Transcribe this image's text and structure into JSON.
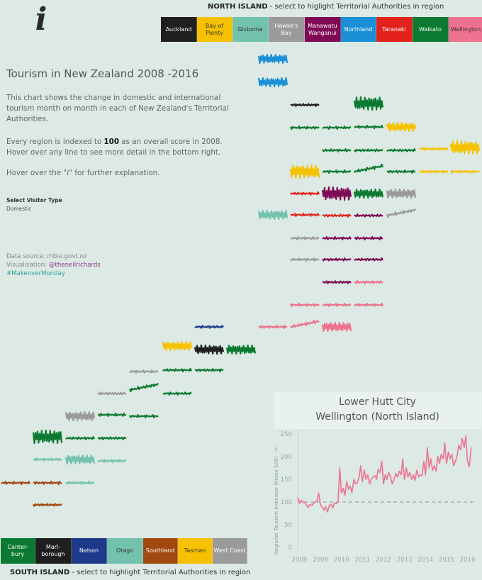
{
  "info": {
    "glyph": "i"
  },
  "north": {
    "title_bold": "NORTH ISLAND",
    "title_rest": " - select to higlight Territorial Authorities in  region",
    "legend": [
      {
        "label": "Auckland",
        "color": "#1f1f1f",
        "text_color": "#ffffff"
      },
      {
        "label": "Bay of Plenty",
        "color": "#f6c200",
        "text_color": "#333333"
      },
      {
        "label": "Gisbome",
        "color": "#72c2ad",
        "text_color": "#333333"
      },
      {
        "label": "Hawke's Bay",
        "color": "#9a9a9a",
        "text_color": "#ffffff"
      },
      {
        "label": "Manawatu Wanganui",
        "color": "#7e0a55",
        "text_color": "#ffffff"
      },
      {
        "label": "Northland",
        "color": "#1a8fd6",
        "text_color": "#ffffff"
      },
      {
        "label": "Taranaki",
        "color": "#e3231b",
        "text_color": "#ffffff"
      },
      {
        "label": "Waikato",
        "color": "#0b7a30",
        "text_color": "#ffffff"
      },
      {
        "label": "Wellington",
        "color": "#ee7190",
        "text_color": "#333333"
      }
    ]
  },
  "south": {
    "title_bold": "SOUTH ISLAND",
    "title_rest": " - select to highlight Territorial Authorities in region",
    "legend": [
      {
        "label": "Canter- bury",
        "color": "#0b7a30",
        "text_color": "#ffffff"
      },
      {
        "label": "Marl- borough",
        "color": "#1f1f1f",
        "text_color": "#ffffff"
      },
      {
        "label": "Nelson",
        "color": "#1d3a8a",
        "text_color": "#ffffff"
      },
      {
        "label": "Otago",
        "color": "#72c2ad",
        "text_color": "#333333"
      },
      {
        "label": "Southland",
        "color": "#a1490f",
        "text_color": "#ffffff"
      },
      {
        "label": "Tasman",
        "color": "#f6c200",
        "text_color": "#333333"
      },
      {
        "label": "West Coast",
        "color": "#9a9a9a",
        "text_color": "#ffffff"
      }
    ]
  },
  "intro": {
    "title": "Tourism in New Zealand 2008 -2016",
    "para1": "This chart shows the change in domestic and international tourism month on month in each of New Zealand's Territorial Authorities.",
    "para2_pre": "Every region is indexed to ",
    "para2_bold": "100",
    "para2_post": " as an overall score in 2008. Hover over any line to see more detail in the bottom right.",
    "para3_pre": "Hover over the \"",
    "para3_i": "i",
    "para3_post": "\" for further explanation."
  },
  "visitor_type": {
    "label": "Select Visitor Type",
    "value": "Domestic"
  },
  "source": {
    "line1": "Data source: mbie.govt.nz",
    "line2_pre": "Visualisation: ",
    "line2_handle": "@theneilrichards",
    "line3": "#MakeoverMonday"
  },
  "tiles": [
    {
      "region": "Northland",
      "color": "#1a8fd6",
      "pattern": "regular"
    },
    {
      "region": "Northland",
      "color": "#1a8fd6",
      "pattern": "regular"
    },
    {
      "region": "Auckland",
      "color": "#1f1f1f",
      "pattern": "flat"
    },
    {
      "region": "Waikato",
      "color": "#0b7a30",
      "pattern": "spiky"
    },
    {
      "region": "Waikato",
      "color": "#0b7a30",
      "pattern": "flat"
    },
    {
      "region": "Waikato",
      "color": "#0b7a30",
      "pattern": "flat"
    },
    {
      "region": "Waikato",
      "color": "#0b7a30",
      "pattern": "flat"
    },
    {
      "region": "Bay of Plenty",
      "color": "#f6c200",
      "pattern": "regular"
    },
    {
      "region": "Waikato",
      "color": "#0b7a30",
      "pattern": "flat"
    },
    {
      "region": "Waikato",
      "color": "#0b7a30",
      "pattern": "flat"
    },
    {
      "region": "Waikato",
      "color": "#0b7a30",
      "pattern": "flat"
    },
    {
      "region": "Bay of Plenty",
      "color": "#f6c200",
      "pattern": "flat"
    },
    {
      "region": "Bay of Plenty",
      "color": "#f6c200",
      "pattern": "spiky"
    },
    {
      "region": "Bay of Plenty",
      "color": "#f6c200",
      "pattern": "spiky"
    },
    {
      "region": "Waikato",
      "color": "#0b7a30",
      "pattern": "flat"
    },
    {
      "region": "Waikato",
      "color": "#0b7a30",
      "pattern": "rising"
    },
    {
      "region": "Waikato",
      "color": "#0b7a30",
      "pattern": "flat"
    },
    {
      "region": "Bay of Plenty",
      "color": "#f6c200",
      "pattern": "flat"
    },
    {
      "region": "Bay of Plenty",
      "color": "#f6c200",
      "pattern": "flat"
    },
    {
      "region": "Gisbome",
      "color": "#72c2ad",
      "pattern": "regular"
    },
    {
      "region": "Taranaki",
      "color": "#e3231b",
      "pattern": "flat"
    },
    {
      "region": "Manawatu Wanganui",
      "color": "#7e0a55",
      "pattern": "spiky"
    },
    {
      "region": "Waikato",
      "color": "#0b7a30",
      "pattern": "regular"
    },
    {
      "region": "Hawke's Bay",
      "color": "#9a9a9a",
      "pattern": "regular"
    },
    {
      "region": "Taranaki",
      "color": "#e3231b",
      "pattern": "flat"
    },
    {
      "region": "Taranaki",
      "color": "#e3231b",
      "pattern": "flat"
    },
    {
      "region": "Manawatu Wanganui",
      "color": "#7e0a55",
      "pattern": "flat"
    },
    {
      "region": "Hawke's Bay",
      "color": "#9a9a9a",
      "pattern": "rising"
    },
    {
      "region": "Hawke's Bay",
      "color": "#9a9a9a",
      "pattern": "flat"
    },
    {
      "region": "Manawatu Wanganui",
      "color": "#7e0a55",
      "pattern": "flat"
    },
    {
      "region": "Manawatu Wanganui",
      "color": "#7e0a55",
      "pattern": "flat"
    },
    {
      "region": "Hawke's Bay",
      "color": "#9a9a9a",
      "pattern": "flat"
    },
    {
      "region": "Manawatu Wanganui",
      "color": "#7e0a55",
      "pattern": "flat"
    },
    {
      "region": "Manawatu Wanganui",
      "color": "#7e0a55",
      "pattern": "flat"
    },
    {
      "region": "Manawatu Wanganui",
      "color": "#7e0a55",
      "pattern": "flat"
    },
    {
      "region": "Wellington",
      "color": "#ee7190",
      "pattern": "flat"
    },
    {
      "region": "Wellington",
      "color": "#ee7190",
      "pattern": "flat"
    },
    {
      "region": "Wellington",
      "color": "#ee7190",
      "pattern": "flat"
    },
    {
      "region": "Wellington",
      "color": "#ee7190",
      "pattern": "flat"
    },
    {
      "region": "Wellington",
      "color": "#ee7190",
      "pattern": "flat"
    },
    {
      "region": "Wellington",
      "color": "#ee7190",
      "pattern": "rising"
    },
    {
      "region": "Wellington",
      "color": "#ee7190",
      "pattern": "regular"
    },
    {
      "region": "Nelson",
      "color": "#1d3a8a",
      "pattern": "flat"
    },
    {
      "region": "Tasman",
      "color": "#f6c200",
      "pattern": "regular"
    },
    {
      "region": "Marlborough",
      "color": "#1f1f1f",
      "pattern": "regular"
    },
    {
      "region": "Canterbury",
      "color": "#0b7a30",
      "pattern": "regular"
    },
    {
      "region": "West Coast",
      "color": "#9a9a9a",
      "pattern": "flat"
    },
    {
      "region": "Canterbury",
      "color": "#0b7a30",
      "pattern": "flat"
    },
    {
      "region": "Canterbury",
      "color": "#0b7a30",
      "pattern": "flat"
    },
    {
      "region": "West Coast",
      "color": "#9a9a9a",
      "pattern": "flat"
    },
    {
      "region": "Canterbury",
      "color": "#0b7a30",
      "pattern": "rising"
    },
    {
      "region": "Canterbury",
      "color": "#0b7a30",
      "pattern": "flat"
    },
    {
      "region": "West Coast",
      "color": "#9a9a9a",
      "pattern": "regular"
    },
    {
      "region": "Canterbury",
      "color": "#0b7a30",
      "pattern": "flat"
    },
    {
      "region": "Canterbury",
      "color": "#0b7a30",
      "pattern": "flat"
    },
    {
      "region": "Canterbury",
      "color": "#0b7a30",
      "pattern": "spiky"
    },
    {
      "region": "Canterbury",
      "color": "#0b7a30",
      "pattern": "flat"
    },
    {
      "region": "Canterbury",
      "color": "#0b7a30",
      "pattern": "flat"
    },
    {
      "region": "Otago",
      "color": "#72c2ad",
      "pattern": "flat"
    },
    {
      "region": "Otago",
      "color": "#72c2ad",
      "pattern": "regular"
    },
    {
      "region": "Otago",
      "color": "#72c2ad",
      "pattern": "flat"
    },
    {
      "region": "Southland",
      "color": "#a1490f",
      "pattern": "flat"
    },
    {
      "region": "Southland",
      "color": "#a1490f",
      "pattern": "flat"
    },
    {
      "region": "Otago",
      "color": "#72c2ad",
      "pattern": "flat"
    },
    {
      "region": "Southland",
      "color": "#a1490f",
      "pattern": "flat"
    }
  ],
  "detail": {
    "title_line1": "Lower Hutt City",
    "title_line2": "Wellington (North Island)",
    "line_color": "#ee7190",
    "baseline_color": "#8a9a96"
  },
  "chart_data": {
    "type": "line",
    "title": "Lower Hutt City Wellington (North Island)",
    "xlabel": "",
    "ylabel": "Regional Tourism Indicator (index 100) -->",
    "ylim": [
      0,
      250
    ],
    "xlim": [
      2008,
      2016.5
    ],
    "yticks": [
      0,
      50,
      100,
      150,
      200,
      250
    ],
    "xticks": [
      "2008",
      "2009",
      "2010",
      "2011",
      "2012",
      "2013",
      "2014",
      "2015",
      "2016"
    ],
    "reference_line": 100,
    "series": [
      {
        "x": [
          2008.0,
          2008.08,
          2008.17,
          2008.25,
          2008.33,
          2008.42,
          2008.5,
          2008.58,
          2008.67,
          2008.75,
          2008.83,
          2008.92,
          2009.0,
          2009.08,
          2009.17,
          2009.25,
          2009.33,
          2009.42,
          2009.5,
          2009.58,
          2009.67,
          2009.75,
          2009.83,
          2009.92,
          2010.0,
          2010.08,
          2010.17,
          2010.25,
          2010.33,
          2010.42,
          2010.5,
          2010.58,
          2010.67,
          2010.75,
          2010.83,
          2010.92,
          2011.0,
          2011.08,
          2011.17,
          2011.25,
          2011.33,
          2011.42,
          2011.5,
          2011.58,
          2011.67,
          2011.75,
          2011.83,
          2011.92,
          2012.0,
          2012.08,
          2012.17,
          2012.25,
          2012.33,
          2012.42,
          2012.5,
          2012.58,
          2012.67,
          2012.75,
          2012.83,
          2012.92,
          2013.0,
          2013.08,
          2013.17,
          2013.25,
          2013.33,
          2013.42,
          2013.5,
          2013.58,
          2013.67,
          2013.75,
          2013.83,
          2013.92,
          2014.0,
          2014.08,
          2014.17,
          2014.25,
          2014.33,
          2014.42,
          2014.5,
          2014.58,
          2014.67,
          2014.75,
          2014.83,
          2014.92,
          2015.0,
          2015.08,
          2015.17,
          2015.25,
          2015.33,
          2015.42,
          2015.5,
          2015.58,
          2015.67,
          2015.75,
          2015.83,
          2015.92,
          2016.0,
          2016.08,
          2016.17,
          2016.25
        ],
        "y": [
          110,
          97,
          104,
          99,
          100,
          93,
          88,
          95,
          92,
          97,
          100,
          103,
          120,
          95,
          88,
          82,
          90,
          78,
          92,
          95,
          87,
          98,
          96,
          100,
          175,
          120,
          130,
          115,
          145,
          128,
          135,
          120,
          150,
          140,
          142,
          155,
          180,
          145,
          170,
          150,
          160,
          140,
          150,
          155,
          158,
          150,
          172,
          165,
          190,
          140,
          160,
          150,
          165,
          155,
          140,
          150,
          163,
          155,
          168,
          160,
          195,
          150,
          175,
          155,
          165,
          150,
          160,
          148,
          170,
          155,
          160,
          158,
          190,
          160,
          220,
          175,
          195,
          170,
          180,
          168,
          200,
          185,
          205,
          195,
          230,
          185,
          210,
          195,
          205,
          180,
          190,
          200,
          225,
          215,
          240,
          220,
          245,
          190,
          178,
          220
        ]
      }
    ]
  }
}
